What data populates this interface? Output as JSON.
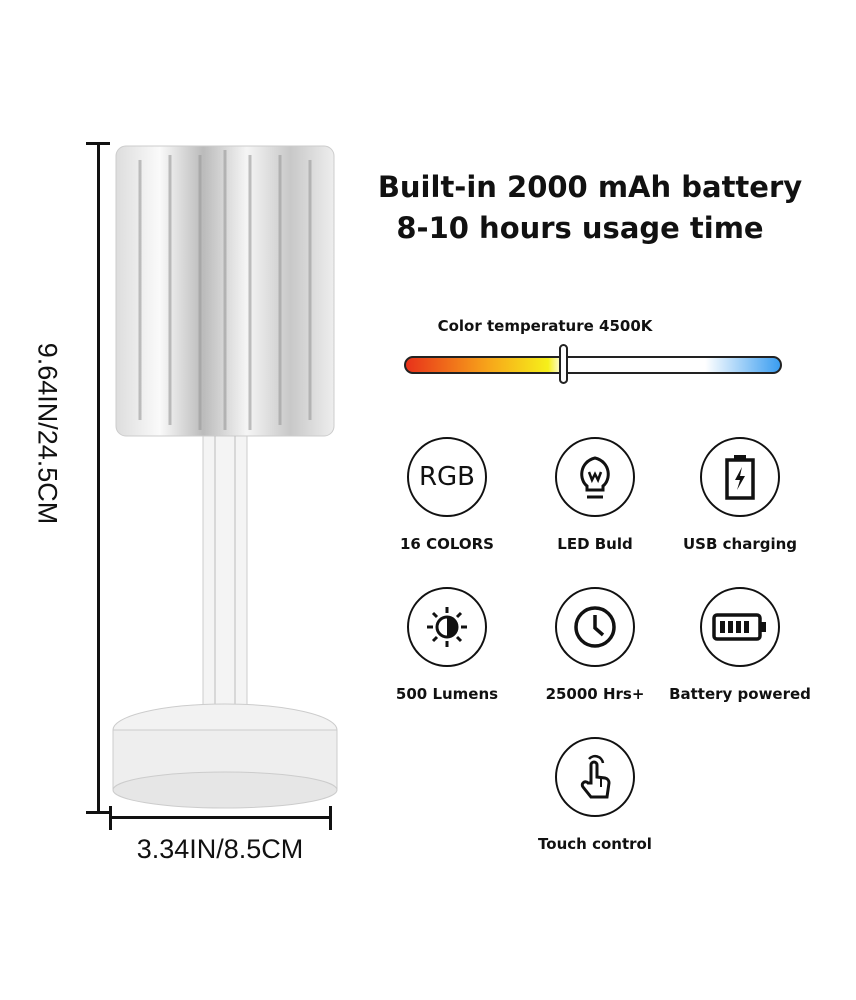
{
  "headline": {
    "line1": "Built-in 2000 mAh battery",
    "line2": "8-10 hours usage time"
  },
  "color_temperature": {
    "label": "Color temperature 4500K",
    "slider_position": 0.42,
    "gradient_colors": [
      "#e8321a",
      "#f6f01a",
      "#ffffff",
      "#3a9df0"
    ]
  },
  "features": [
    {
      "icon": "rgb-icon",
      "icon_text": "RGB",
      "label": "16 COLORS"
    },
    {
      "icon": "light-bulb-icon",
      "label": "LED Buld"
    },
    {
      "icon": "battery-charging-icon",
      "label": "USB charging"
    },
    {
      "icon": "brightness-icon",
      "label": "500 Lumens"
    },
    {
      "icon": "clock-icon",
      "label": "25000 Hrs+"
    },
    {
      "icon": "battery-icon",
      "label": "Battery powered"
    },
    {
      "icon": "touch-icon",
      "label": "Touch control"
    }
  ],
  "dimensions": {
    "height": "9.64IN/24.5CM",
    "width": "3.34IN/8.5CM"
  }
}
